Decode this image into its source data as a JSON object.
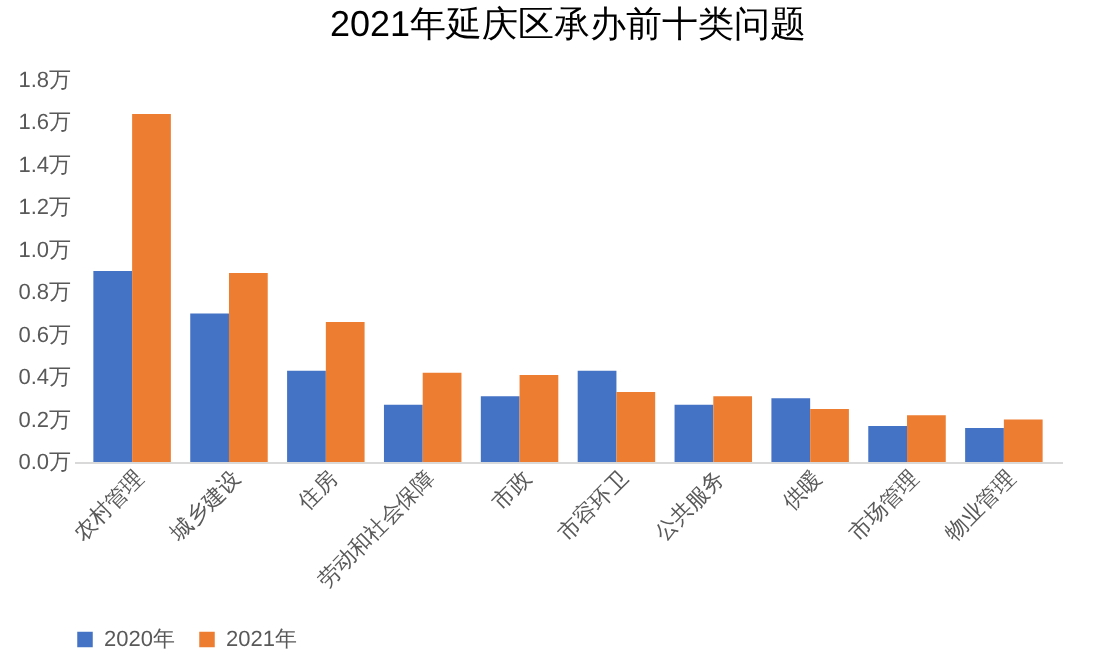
{
  "chart_data": {
    "type": "bar",
    "title": "2021年延庆区承办前十类问题",
    "categories": [
      "农村管理",
      "城乡建设",
      "住房",
      "劳动和社会保障",
      "市政",
      "市容环卫",
      "公共服务",
      "供暖",
      "市场管理",
      "物业管理"
    ],
    "series": [
      {
        "name": "2020年",
        "color": "#4472c4",
        "values": [
          0.9,
          0.7,
          0.43,
          0.27,
          0.31,
          0.43,
          0.27,
          0.3,
          0.17,
          0.16
        ]
      },
      {
        "name": "2021年",
        "color": "#ed7d31",
        "values": [
          1.64,
          0.89,
          0.66,
          0.42,
          0.41,
          0.33,
          0.31,
          0.25,
          0.22,
          0.2
        ]
      }
    ],
    "ylim": [
      0,
      1.8
    ],
    "yticks": [
      {
        "value": 0,
        "label": "0.0万"
      },
      {
        "value": 0.2,
        "label": "0.2万"
      },
      {
        "value": 0.4,
        "label": "0.4万"
      },
      {
        "value": 0.6,
        "label": "0.6万"
      },
      {
        "value": 0.8,
        "label": "0.8万"
      },
      {
        "value": 1.0,
        "label": "1.0万"
      },
      {
        "value": 1.2,
        "label": "1.2万"
      },
      {
        "value": 1.4,
        "label": "1.4万"
      },
      {
        "value": 1.6,
        "label": "1.6万"
      },
      {
        "value": 1.8,
        "label": "1.8万"
      }
    ],
    "grid": false,
    "legend": "bottom"
  }
}
